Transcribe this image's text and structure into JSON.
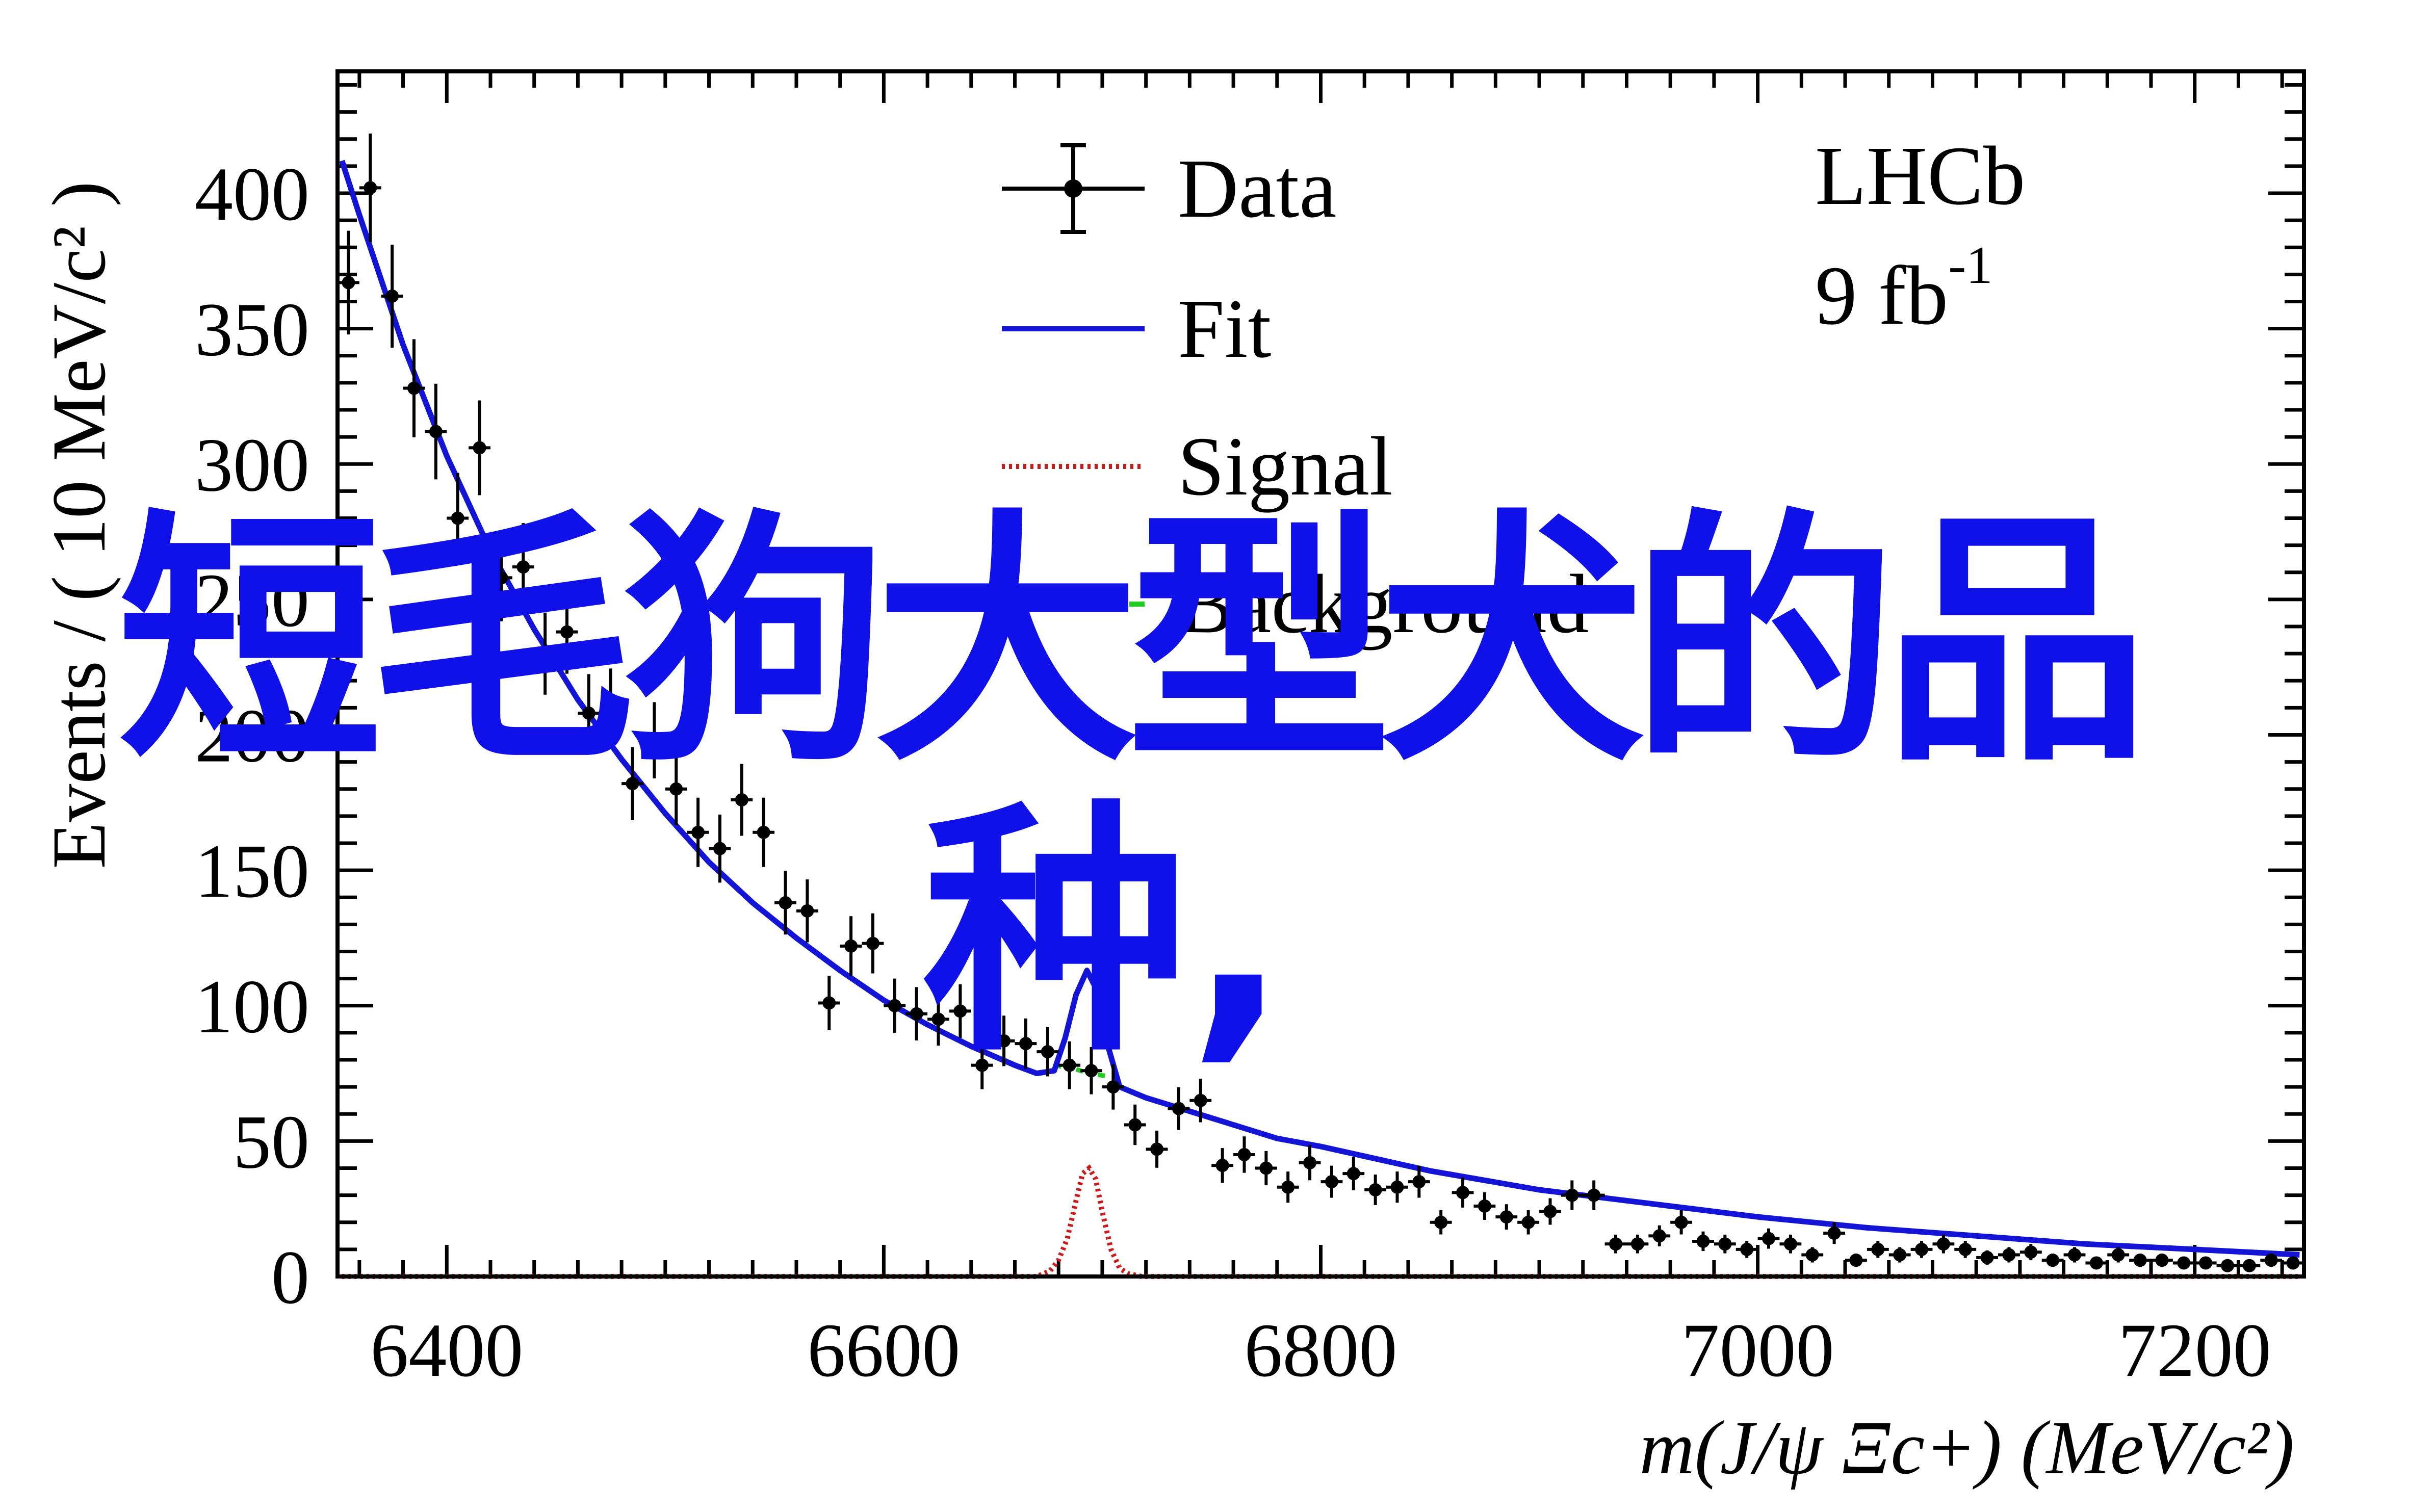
{
  "colors": {
    "data": "#000000",
    "fit": "#1414d6",
    "signal": "#cc1a1a",
    "background": "#22cc22",
    "overlay_text": "#1010e8"
  },
  "overlay": {
    "line1": "短毛狗大型犬的品",
    "line2": "种,"
  },
  "chart_data": {
    "type": "scatter",
    "title": "",
    "experiment_label": "LHCb",
    "luminosity_label": "9 fb",
    "luminosity_exp": "-1",
    "xlabel": "m(J/ψ Ξc+) (MeV/c²)",
    "ylabel": "Events / ( 10 MeV/c² )",
    "xlim": [
      6350,
      7250
    ],
    "ylim": [
      0,
      445
    ],
    "x_ticks": [
      6400,
      6600,
      6800,
      7000,
      7200
    ],
    "y_ticks": [
      0,
      50,
      100,
      150,
      200,
      250,
      300,
      350,
      400
    ],
    "legend": {
      "position": "top-center",
      "entries": [
        {
          "label": "Data",
          "style": "points-errorbars"
        },
        {
          "label": "Fit",
          "style": "solid-blue"
        },
        {
          "label": "Signal",
          "style": "dotted-red"
        },
        {
          "label": "Background",
          "style": "dashed-green"
        }
      ]
    },
    "series": [
      {
        "name": "Data",
        "x": [
          6355,
          6365,
          6375,
          6385,
          6395,
          6405,
          6415,
          6425,
          6435,
          6445,
          6455,
          6465,
          6475,
          6485,
          6495,
          6505,
          6515,
          6525,
          6535,
          6545,
          6555,
          6565,
          6575,
          6585,
          6595,
          6605,
          6615,
          6625,
          6635,
          6645,
          6655,
          6665,
          6675,
          6685,
          6695,
          6705,
          6715,
          6725,
          6735,
          6745,
          6755,
          6765,
          6775,
          6785,
          6795,
          6805,
          6815,
          6825,
          6835,
          6845,
          6855,
          6865,
          6875,
          6885,
          6895,
          6905,
          6915,
          6925,
          6935,
          6945,
          6955,
          6965,
          6975,
          6985,
          6995,
          7005,
          7015,
          7025,
          7035,
          7045,
          7055,
          7065,
          7075,
          7085,
          7095,
          7105,
          7115,
          7125,
          7135,
          7145,
          7155,
          7165,
          7175,
          7185,
          7195,
          7205,
          7215,
          7225,
          7235,
          7245
        ],
        "values": [
          367,
          402,
          362,
          328,
          312,
          280,
          306,
          258,
          262,
          230,
          238,
          208,
          210,
          182,
          198,
          180,
          164,
          158,
          176,
          164,
          138,
          135,
          101,
          122,
          123,
          100,
          97,
          95,
          98,
          78,
          87,
          86,
          83,
          78,
          76,
          70,
          56,
          47,
          62,
          65,
          41,
          45,
          40,
          33,
          42,
          35,
          38,
          32,
          33,
          35,
          20,
          31,
          26,
          22,
          20,
          24,
          30,
          30,
          12,
          12,
          15,
          20,
          13,
          12,
          10,
          14,
          12,
          8,
          16,
          6,
          10,
          8,
          10,
          12,
          10,
          7,
          8,
          9,
          6,
          8,
          5,
          8,
          6,
          6,
          5,
          5,
          4,
          4,
          6,
          5
        ]
      },
      {
        "name": "Fit",
        "x": [
          6352,
          6360,
          6380,
          6400,
          6420,
          6440,
          6460,
          6480,
          6500,
          6520,
          6540,
          6560,
          6580,
          6600,
          6620,
          6640,
          6660,
          6670,
          6678,
          6683,
          6688,
          6693,
          6698,
          6703,
          6708,
          6720,
          6740,
          6760,
          6780,
          6800,
          6850,
          6900,
          6950,
          7000,
          7050,
          7100,
          7150,
          7200,
          7248
        ],
        "values": [
          412,
          392,
          344,
          303,
          268,
          239,
          213,
          191,
          171,
          153,
          138,
          125,
          113,
          102,
          93,
          85,
          78,
          75,
          76,
          88,
          104,
          113,
          105,
          84,
          70,
          66,
          61,
          56,
          51,
          48,
          39,
          32,
          27,
          22,
          18,
          15,
          12,
          10,
          8
        ]
      },
      {
        "name": "Signal",
        "x": [
          6352,
          6670,
          6676,
          6680,
          6684,
          6688,
          6691,
          6694,
          6697,
          6700,
          6704,
          6708,
          6712,
          6718,
          7248
        ],
        "values": [
          0,
          0,
          2,
          6,
          14,
          28,
          38,
          40,
          36,
          24,
          10,
          3,
          1,
          0,
          0
        ]
      },
      {
        "name": "Background",
        "x": [
          6678,
          6686,
          6694,
          6702,
          6708
        ],
        "values": [
          78,
          77,
          75,
          74,
          72
        ]
      }
    ]
  }
}
